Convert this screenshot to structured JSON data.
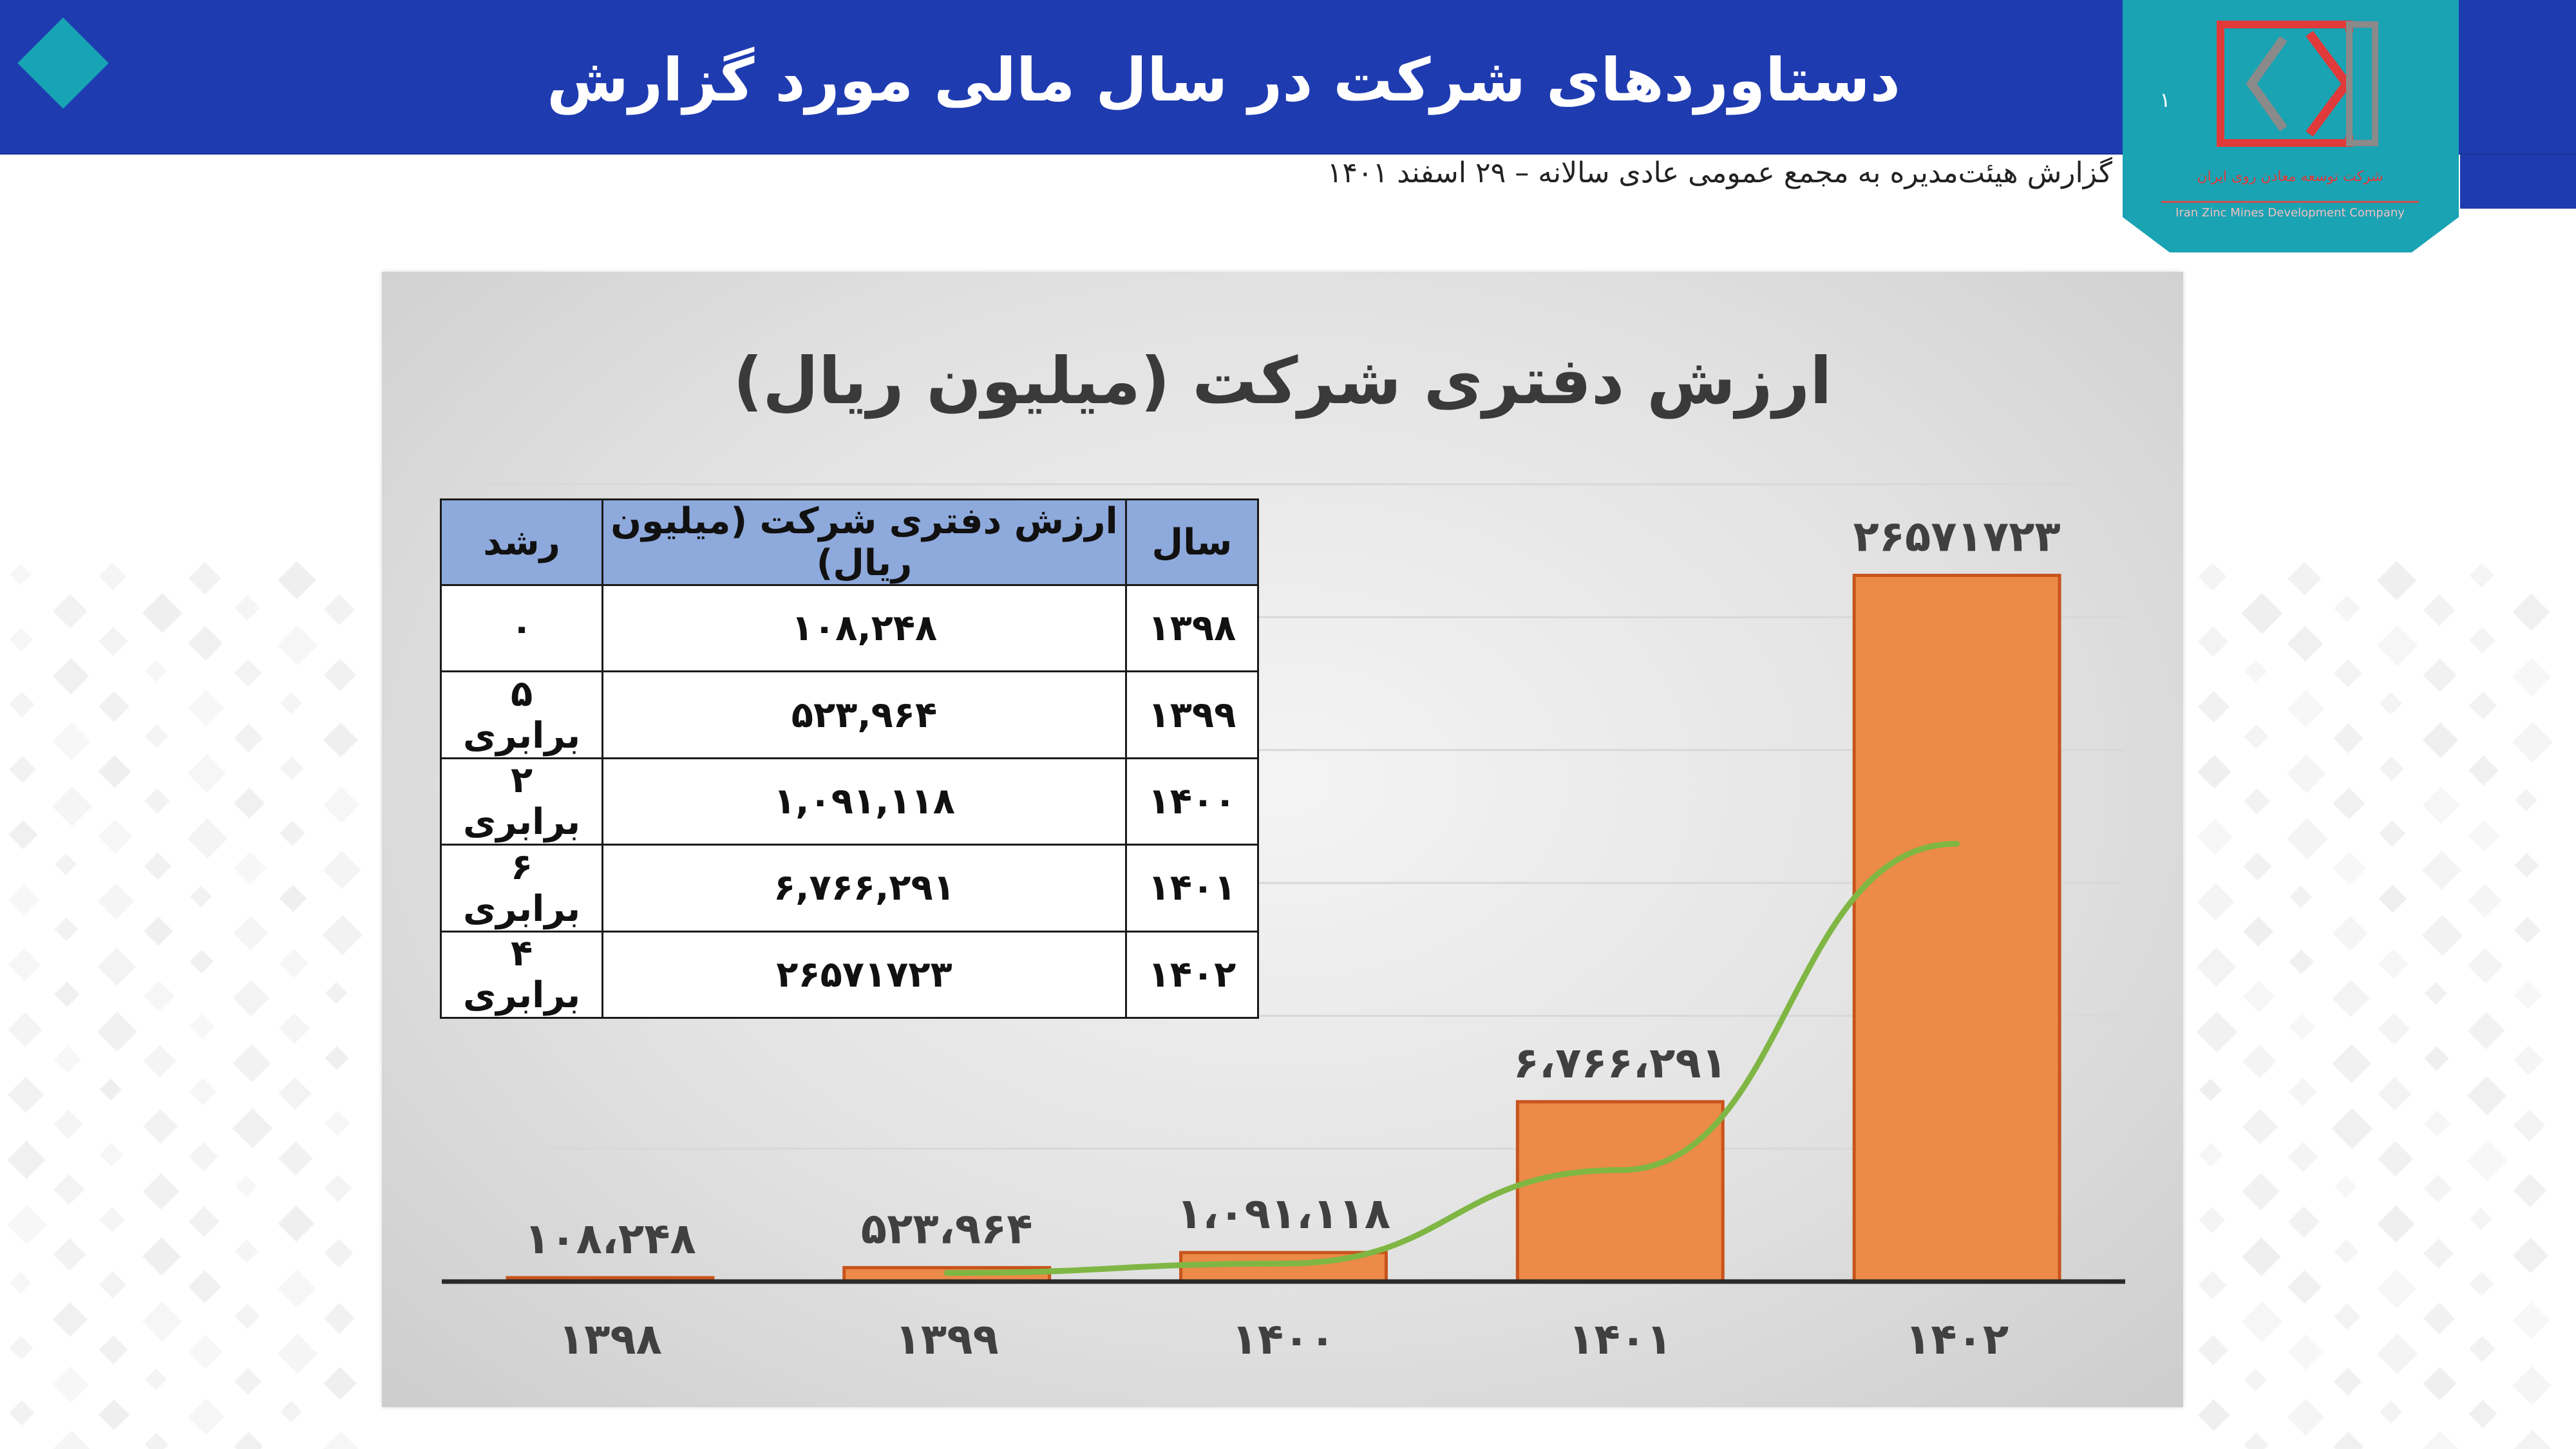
{
  "header": {
    "title": "دستاوردهای شرکت در سال مالی مورد گزارش",
    "subtitle": "گزارش هیئت‌مدیره به مجمع عمومی عادی سالانه – ۲۹ اسفند ۱۴۰۱",
    "page_number": "۱"
  },
  "logo": {
    "text_fa": "شرکت توسعه معادن روی ایران",
    "text_en": "Iran Zinc Mines Development Company"
  },
  "colors": {
    "header_blue": "#1f3bb0",
    "teal": "#17a4b4",
    "bar_orange": "#ec8a48",
    "bar_border": "#c8541c",
    "trend_green": "#7fb644",
    "table_header": "#8ea9db"
  },
  "table": {
    "headers": {
      "year": "سال",
      "value": "ارزش دفتری شرکت (میلیون ریال)",
      "growth": "رشد"
    },
    "rows": [
      {
        "year": "۱۳۹۸",
        "value": "۱۰۸,۲۴۸",
        "growth": "۰"
      },
      {
        "year": "۱۳۹۹",
        "value": "۵۲۳,۹۶۴",
        "growth": "۵ برابری"
      },
      {
        "year": "۱۴۰۰",
        "value": "۱,۰۹۱,۱۱۸",
        "growth": "۲ برابری"
      },
      {
        "year": "۱۴۰۱",
        "value": "۶,۷۶۶,۲۹۱",
        "growth": "۶ برابری"
      },
      {
        "year": "۱۴۰۲",
        "value": "۲۶۵۷۱۷۲۳",
        "growth": "۴ برابری"
      }
    ]
  },
  "chart_data": {
    "type": "bar",
    "title": "ارزش دفتری شرکت (میلیون ریال)",
    "categories": [
      "۱۳۹۸",
      "۱۳۹۹",
      "۱۴۰۰",
      "۱۴۰۱",
      "۱۴۰۲"
    ],
    "values": [
      108248,
      523964,
      1091118,
      6766291,
      26571723
    ],
    "data_labels": [
      "۱۰۸،۲۴۸",
      "۵۲۳،۹۶۴",
      "۱،۰۹۱،۱۱۸",
      "۶،۷۶۶،۲۹۱",
      "۲۶۵۷۱۷۲۳"
    ],
    "trendline": {
      "type": "line",
      "color": "#7fb644"
    },
    "xlabel": "",
    "ylabel": "",
    "ylim": [
      0,
      30000000
    ],
    "grid": true,
    "legend": "none"
  }
}
